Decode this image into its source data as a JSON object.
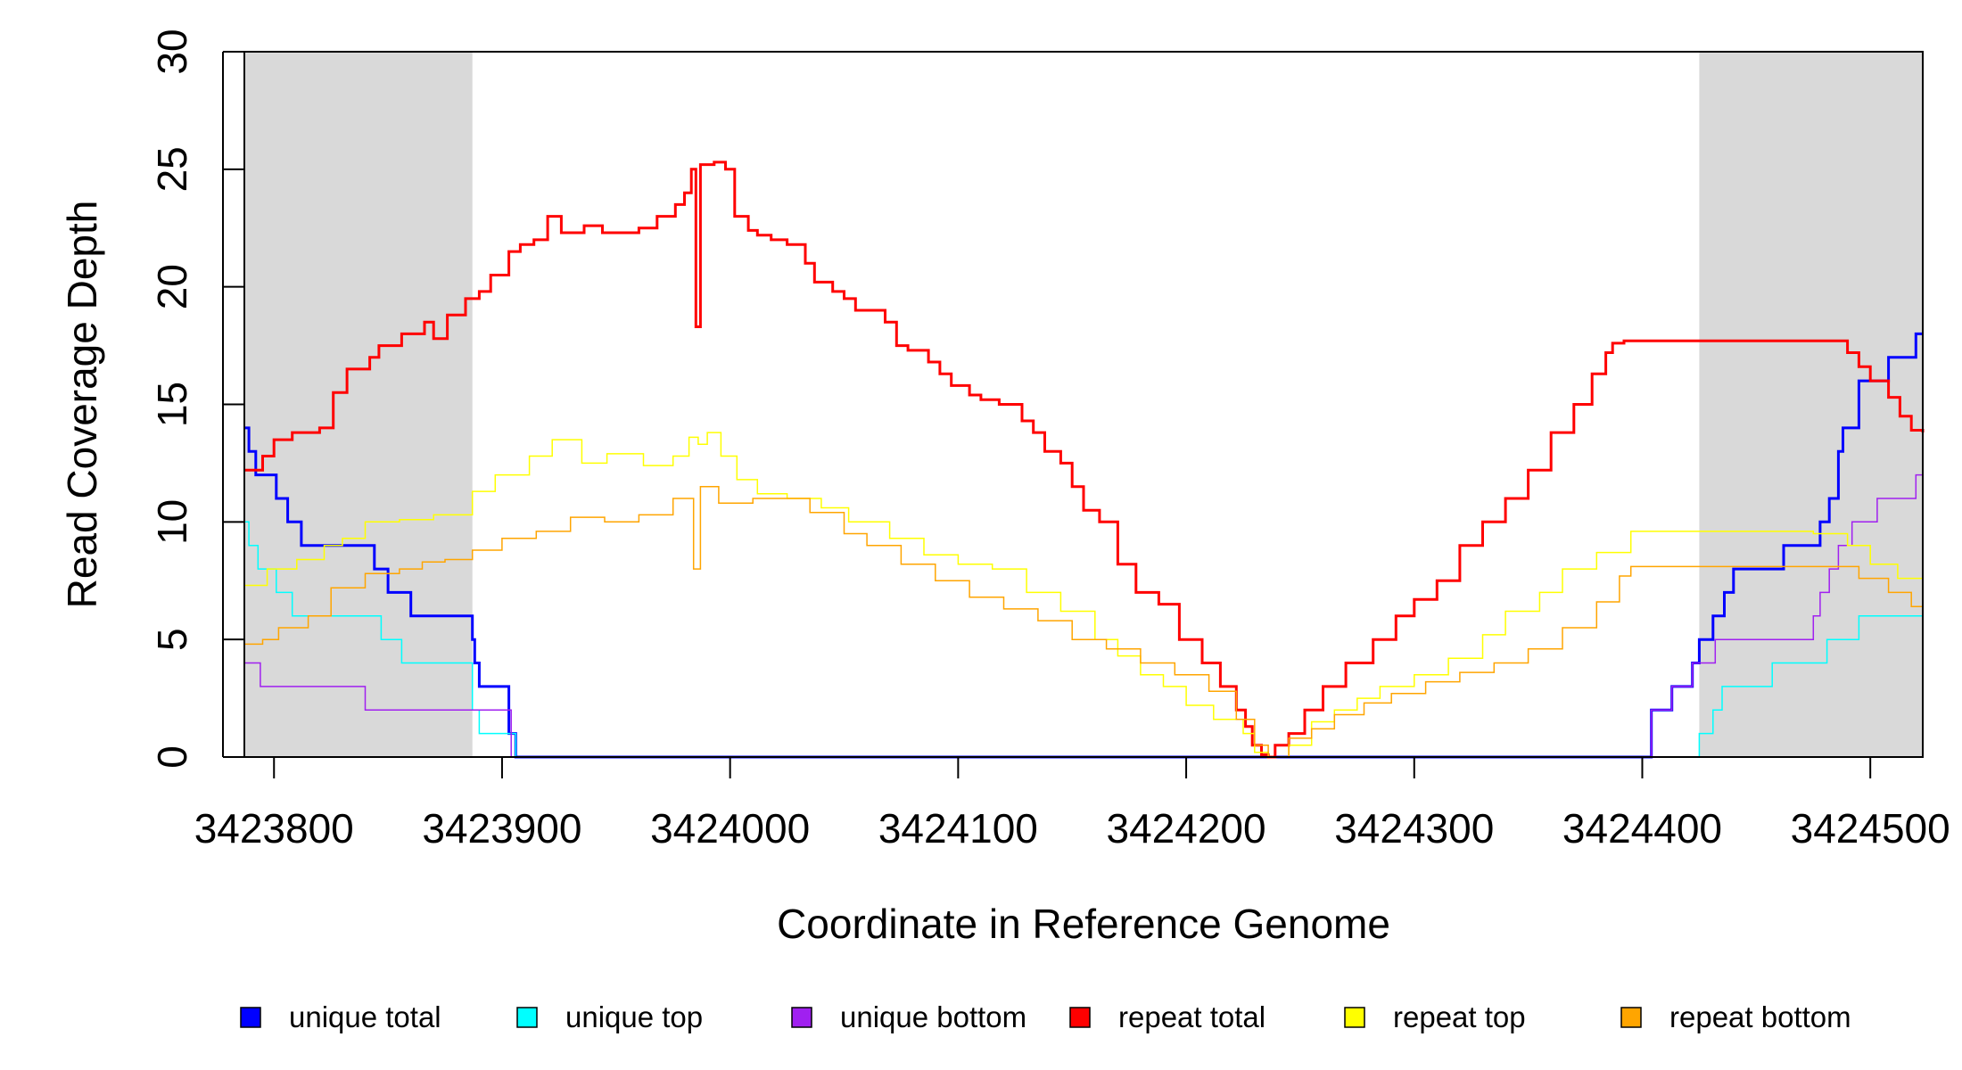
{
  "chart_data": {
    "type": "line",
    "title": "",
    "xlabel": "Coordinate in Reference Genome",
    "ylabel": "Read Coverage Depth",
    "xlim": [
      3423787,
      3424523
    ],
    "ylim": [
      0,
      30
    ],
    "x_ticks": [
      3423800,
      3423900,
      3424000,
      3424100,
      3424200,
      3424300,
      3424400,
      3424500
    ],
    "y_ticks": [
      0,
      5,
      10,
      15,
      20,
      25,
      30
    ],
    "grid": false,
    "shaded_regions": [
      {
        "x_start": 3423787,
        "x_end": 3423887,
        "color": "#d9d9d9"
      },
      {
        "x_start": 3424425,
        "x_end": 3424523,
        "color": "#d9d9d9"
      }
    ],
    "legend": {
      "placement": "bottom"
    },
    "series": [
      {
        "name": "unique total",
        "color": "#0000ff",
        "stroke_width": 3,
        "points": [
          [
            3423787,
            14
          ],
          [
            3423789,
            13
          ],
          [
            3423792,
            12
          ],
          [
            3423801,
            11
          ],
          [
            3423806,
            10
          ],
          [
            3423812,
            9
          ],
          [
            3423830,
            9
          ],
          [
            3423844,
            8
          ],
          [
            3423850,
            7
          ],
          [
            3423860,
            6
          ],
          [
            3423874,
            6
          ],
          [
            3423886,
            6
          ],
          [
            3423887,
            5
          ],
          [
            3423888,
            4
          ],
          [
            3423890,
            3
          ],
          [
            3423899,
            3
          ],
          [
            3423903,
            1
          ],
          [
            3423906,
            0
          ],
          [
            3424403,
            0
          ],
          [
            3424404,
            2
          ],
          [
            3424413,
            3
          ],
          [
            3424422,
            4
          ],
          [
            3424425,
            5
          ],
          [
            3424431,
            6
          ],
          [
            3424436,
            7
          ],
          [
            3424440,
            8
          ],
          [
            3424462,
            9
          ],
          [
            3424478,
            10
          ],
          [
            3424482,
            11
          ],
          [
            3424486,
            13
          ],
          [
            3424488,
            14
          ],
          [
            3424495,
            16
          ],
          [
            3424508,
            17
          ],
          [
            3424520,
            18
          ],
          [
            3424523,
            18
          ]
        ]
      },
      {
        "name": "unique top",
        "color": "#00ffff",
        "stroke_width": 1.5,
        "points": [
          [
            3423787,
            10
          ],
          [
            3423789,
            9
          ],
          [
            3423793,
            8
          ],
          [
            3423801,
            7
          ],
          [
            3423808,
            6
          ],
          [
            3423836,
            6
          ],
          [
            3423847,
            5
          ],
          [
            3423856,
            4
          ],
          [
            3423886,
            4
          ],
          [
            3423887,
            2
          ],
          [
            3423890,
            1
          ],
          [
            3423903,
            1
          ],
          [
            3423906,
            0
          ],
          [
            3424424,
            0
          ],
          [
            3424425,
            1
          ],
          [
            3424431,
            2
          ],
          [
            3424435,
            3
          ],
          [
            3424457,
            4
          ],
          [
            3424481,
            5
          ],
          [
            3424495,
            6
          ],
          [
            3424523,
            6
          ]
        ]
      },
      {
        "name": "unique bottom",
        "color": "#a020f0",
        "stroke_width": 1.5,
        "points": [
          [
            3423787,
            4
          ],
          [
            3423794,
            4
          ],
          [
            3423794,
            3
          ],
          [
            3423810,
            3
          ],
          [
            3423830,
            3
          ],
          [
            3423840,
            2
          ],
          [
            3423887,
            2
          ],
          [
            3423899,
            2
          ],
          [
            3423904,
            0
          ],
          [
            3424403,
            0
          ],
          [
            3424404,
            2
          ],
          [
            3424413,
            3
          ],
          [
            3424422,
            4
          ],
          [
            3424432,
            5
          ],
          [
            3424452,
            5
          ],
          [
            3424467,
            5
          ],
          [
            3424475,
            6
          ],
          [
            3424478,
            7
          ],
          [
            3424482,
            8
          ],
          [
            3424486,
            9
          ],
          [
            3424492,
            10
          ],
          [
            3424503,
            11
          ],
          [
            3424520,
            12
          ],
          [
            3424523,
            12
          ]
        ]
      },
      {
        "name": "repeat total",
        "color": "#ff0000",
        "stroke_width": 3,
        "points": [
          [
            3423787,
            12.2
          ],
          [
            3423795,
            12.8
          ],
          [
            3423800,
            13.5
          ],
          [
            3423808,
            13.8
          ],
          [
            3423820,
            14
          ],
          [
            3423826,
            15.5
          ],
          [
            3423832,
            16.5
          ],
          [
            3423842,
            17
          ],
          [
            3423846,
            17.5
          ],
          [
            3423856,
            18
          ],
          [
            3423866,
            18.5
          ],
          [
            3423870,
            17.8
          ],
          [
            3423876,
            18.8
          ],
          [
            3423884,
            19.5
          ],
          [
            3423890,
            19.8
          ],
          [
            3423895,
            20.5
          ],
          [
            3423903,
            21.5
          ],
          [
            3423908,
            21.8
          ],
          [
            3423914,
            22
          ],
          [
            3423920,
            23
          ],
          [
            3423926,
            22.3
          ],
          [
            3423936,
            22.6
          ],
          [
            3423944,
            22.3
          ],
          [
            3423960,
            22.5
          ],
          [
            3423968,
            23
          ],
          [
            3423976,
            23.5
          ],
          [
            3423980,
            24
          ],
          [
            3423983,
            25
          ],
          [
            3423985,
            18.3
          ],
          [
            3423987,
            25.2
          ],
          [
            3423993,
            25.3
          ],
          [
            3423998,
            25
          ],
          [
            3424002,
            23
          ],
          [
            3424008,
            22.4
          ],
          [
            3424012,
            22.2
          ],
          [
            3424018,
            22
          ],
          [
            3424025,
            21.8
          ],
          [
            3424033,
            21
          ],
          [
            3424037,
            20.2
          ],
          [
            3424045,
            19.8
          ],
          [
            3424050,
            19.5
          ],
          [
            3424055,
            19
          ],
          [
            3424068,
            18.5
          ],
          [
            3424073,
            17.5
          ],
          [
            3424078,
            17.3
          ],
          [
            3424087,
            16.8
          ],
          [
            3424092,
            16.3
          ],
          [
            3424097,
            15.8
          ],
          [
            3424105,
            15.4
          ],
          [
            3424110,
            15.2
          ],
          [
            3424118,
            15
          ],
          [
            3424128,
            14.3
          ],
          [
            3424133,
            13.8
          ],
          [
            3424138,
            13
          ],
          [
            3424145,
            12.5
          ],
          [
            3424150,
            11.5
          ],
          [
            3424155,
            10.5
          ],
          [
            3424162,
            10
          ],
          [
            3424170,
            8.2
          ],
          [
            3424178,
            7
          ],
          [
            3424188,
            6.5
          ],
          [
            3424197,
            5
          ],
          [
            3424207,
            4
          ],
          [
            3424215,
            3
          ],
          [
            3424222,
            2
          ],
          [
            3424226,
            1.3
          ],
          [
            3424229,
            0.5
          ],
          [
            3424233,
            0.1
          ],
          [
            3424236,
            0
          ],
          [
            3424239,
            0.5
          ],
          [
            3424245,
            1
          ],
          [
            3424252,
            2
          ],
          [
            3424260,
            3
          ],
          [
            3424270,
            4
          ],
          [
            3424282,
            5
          ],
          [
            3424292,
            6
          ],
          [
            3424300,
            6.7
          ],
          [
            3424310,
            7.5
          ],
          [
            3424320,
            9
          ],
          [
            3424330,
            10
          ],
          [
            3424340,
            11
          ],
          [
            3424350,
            12.2
          ],
          [
            3424360,
            13.8
          ],
          [
            3424370,
            15
          ],
          [
            3424378,
            16.3
          ],
          [
            3424384,
            17.2
          ],
          [
            3424387,
            17.6
          ],
          [
            3424392,
            17.7
          ],
          [
            3424425,
            17.7
          ],
          [
            3424484,
            17.7
          ],
          [
            3424490,
            17.2
          ],
          [
            3424495,
            16.6
          ],
          [
            3424500,
            16
          ],
          [
            3424508,
            15.3
          ],
          [
            3424513,
            14.5
          ],
          [
            3424518,
            13.9
          ],
          [
            3424523,
            13.8
          ]
        ]
      },
      {
        "name": "repeat top",
        "color": "#ffff00",
        "stroke_width": 1.5,
        "points": [
          [
            3423787,
            7.3
          ],
          [
            3423797,
            8
          ],
          [
            3423810,
            8.4
          ],
          [
            3423822,
            9
          ],
          [
            3423830,
            9.3
          ],
          [
            3423840,
            10
          ],
          [
            3423855,
            10.1
          ],
          [
            3423870,
            10.3
          ],
          [
            3423887,
            11.3
          ],
          [
            3423897,
            12
          ],
          [
            3423912,
            12.8
          ],
          [
            3423922,
            13.5
          ],
          [
            3423935,
            12.5
          ],
          [
            3423946,
            12.9
          ],
          [
            3423962,
            12.4
          ],
          [
            3423975,
            12.8
          ],
          [
            3423982,
            13.6
          ],
          [
            3423986,
            13.3
          ],
          [
            3423990,
            13.8
          ],
          [
            3423996,
            12.8
          ],
          [
            3424003,
            11.8
          ],
          [
            3424012,
            11.2
          ],
          [
            3424025,
            11
          ],
          [
            3424040,
            10.6
          ],
          [
            3424052,
            10
          ],
          [
            3424070,
            9.3
          ],
          [
            3424085,
            8.6
          ],
          [
            3424100,
            8.2
          ],
          [
            3424115,
            8
          ],
          [
            3424130,
            7
          ],
          [
            3424145,
            6.2
          ],
          [
            3424160,
            5
          ],
          [
            3424170,
            4.3
          ],
          [
            3424180,
            3.5
          ],
          [
            3424190,
            3
          ],
          [
            3424200,
            2.2
          ],
          [
            3424212,
            1.6
          ],
          [
            3424225,
            1
          ],
          [
            3424230,
            0.2
          ],
          [
            3424236,
            0
          ],
          [
            3424245,
            0.5
          ],
          [
            3424255,
            1.5
          ],
          [
            3424265,
            2
          ],
          [
            3424275,
            2.5
          ],
          [
            3424285,
            3
          ],
          [
            3424300,
            3.5
          ],
          [
            3424315,
            4.2
          ],
          [
            3424330,
            5.2
          ],
          [
            3424340,
            6.2
          ],
          [
            3424355,
            7
          ],
          [
            3424365,
            8
          ],
          [
            3424380,
            8.7
          ],
          [
            3424395,
            9.6
          ],
          [
            3424425,
            9.6
          ],
          [
            3424475,
            9.5
          ],
          [
            3424490,
            9
          ],
          [
            3424500,
            8.2
          ],
          [
            3424512,
            7.6
          ],
          [
            3424523,
            7.4
          ]
        ]
      },
      {
        "name": "repeat bottom",
        "color": "#ffa500",
        "stroke_width": 1.5,
        "points": [
          [
            3423787,
            4.8
          ],
          [
            3423795,
            5
          ],
          [
            3423802,
            5.5
          ],
          [
            3423815,
            6
          ],
          [
            3423825,
            7.2
          ],
          [
            3423840,
            7.8
          ],
          [
            3423855,
            8
          ],
          [
            3423865,
            8.3
          ],
          [
            3423875,
            8.4
          ],
          [
            3423887,
            8.8
          ],
          [
            3423900,
            9.3
          ],
          [
            3423915,
            9.6
          ],
          [
            3423930,
            10.2
          ],
          [
            3423945,
            10
          ],
          [
            3423960,
            10.3
          ],
          [
            3423975,
            11
          ],
          [
            3423984,
            8
          ],
          [
            3423987,
            11.5
          ],
          [
            3423995,
            10.8
          ],
          [
            3424010,
            11
          ],
          [
            3424035,
            10.4
          ],
          [
            3424050,
            9.5
          ],
          [
            3424060,
            9
          ],
          [
            3424075,
            8.2
          ],
          [
            3424090,
            7.5
          ],
          [
            3424105,
            6.8
          ],
          [
            3424120,
            6.3
          ],
          [
            3424135,
            5.8
          ],
          [
            3424150,
            5
          ],
          [
            3424165,
            4.6
          ],
          [
            3424180,
            4
          ],
          [
            3424195,
            3.5
          ],
          [
            3424210,
            2.8
          ],
          [
            3424222,
            1.6
          ],
          [
            3424230,
            0.5
          ],
          [
            3424236,
            0
          ],
          [
            3424245,
            0.8
          ],
          [
            3424255,
            1.2
          ],
          [
            3424265,
            1.8
          ],
          [
            3424278,
            2.3
          ],
          [
            3424290,
            2.7
          ],
          [
            3424305,
            3.2
          ],
          [
            3424320,
            3.6
          ],
          [
            3424335,
            4
          ],
          [
            3424350,
            4.6
          ],
          [
            3424365,
            5.5
          ],
          [
            3424380,
            6.6
          ],
          [
            3424390,
            7.7
          ],
          [
            3424395,
            8.1
          ],
          [
            3424425,
            8.1
          ],
          [
            3424470,
            8.1
          ],
          [
            3424485,
            8.1
          ],
          [
            3424495,
            7.6
          ],
          [
            3424508,
            7
          ],
          [
            3424518,
            6.4
          ],
          [
            3424523,
            6.2
          ]
        ]
      }
    ]
  }
}
